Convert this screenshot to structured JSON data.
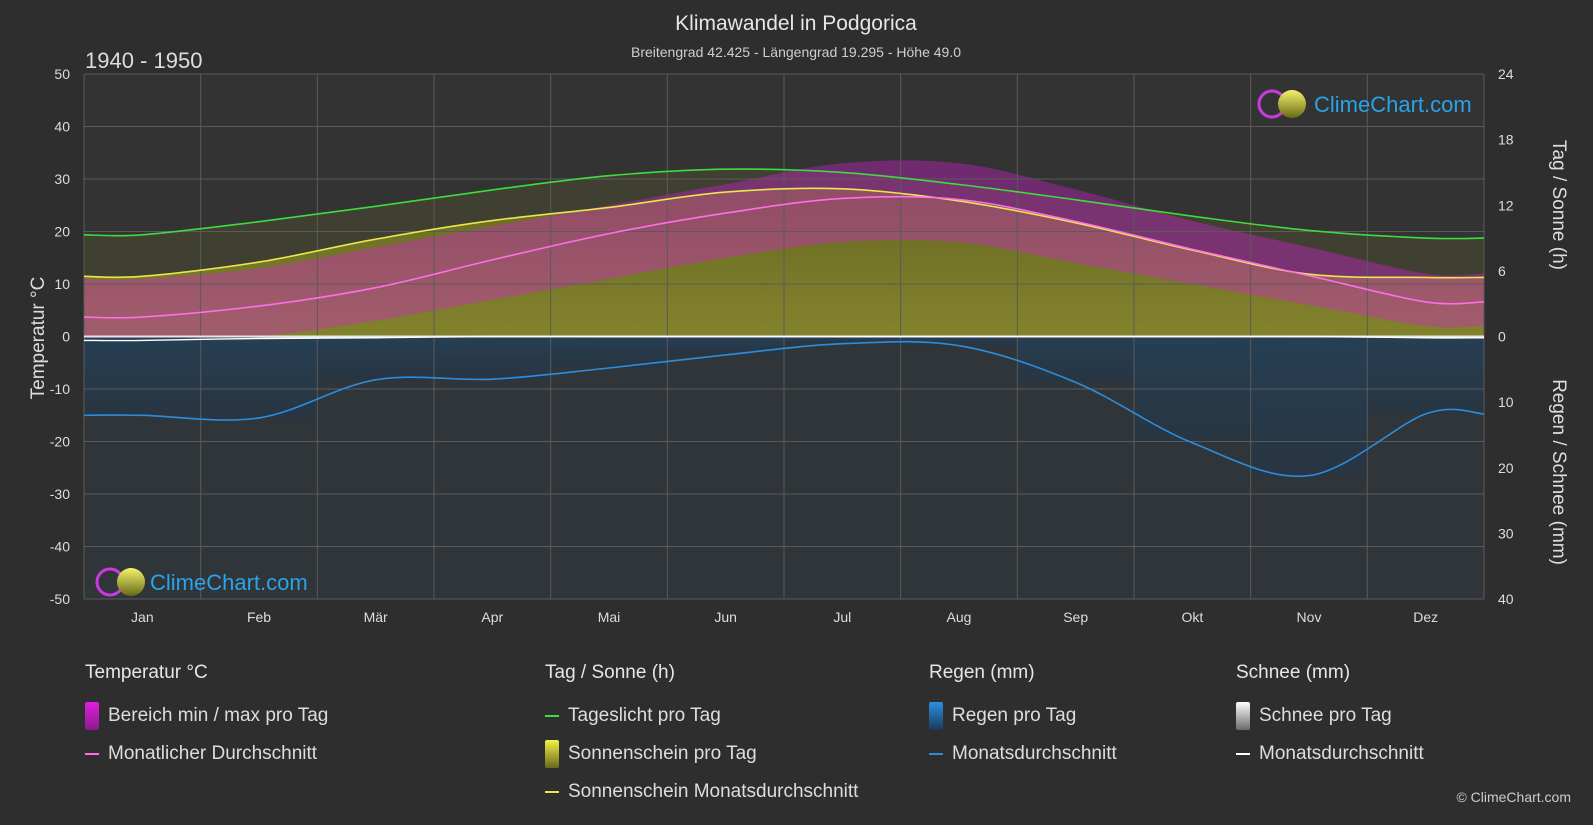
{
  "chart_data": {
    "type": "area",
    "title": "Klimawandel in Podgorica",
    "subtitle": "Breitengrad 42.425 - Längengrad 19.295 - Höhe 49.0",
    "period": "1940 - 1950",
    "categories": [
      "Jan",
      "Feb",
      "Mär",
      "Apr",
      "Mai",
      "Jun",
      "Jul",
      "Aug",
      "Sep",
      "Okt",
      "Nov",
      "Dez"
    ],
    "y_left": {
      "label": "Temperatur °C",
      "range": [
        -50,
        50
      ],
      "ticks": [
        50,
        40,
        30,
        20,
        10,
        0,
        -10,
        -20,
        -30,
        -40,
        -50
      ]
    },
    "y_right_top": {
      "label": "Tag / Sonne (h)",
      "range": [
        0,
        24
      ],
      "ticks": [
        24,
        18,
        12,
        6,
        0
      ]
    },
    "y_right_bottom": {
      "label": "Regen / Schnee (mm)",
      "range": [
        0,
        40
      ],
      "ticks": [
        0,
        10,
        20,
        30,
        40
      ]
    },
    "series": [
      {
        "name": "Tageslicht pro Tag",
        "unit": "h",
        "color": "#3ddc3d",
        "values": [
          9.3,
          10.5,
          11.9,
          13.4,
          14.7,
          15.3,
          15.0,
          13.9,
          12.5,
          11.0,
          9.7,
          9.0
        ]
      },
      {
        "name": "Sonnenschein Monatsdurchschnitt",
        "unit": "h",
        "color": "#e8e84a",
        "values": [
          5.5,
          6.8,
          8.9,
          10.6,
          11.8,
          13.2,
          13.5,
          12.4,
          10.4,
          7.9,
          5.7,
          5.4
        ]
      },
      {
        "name": "Monatlicher Durchschnitt",
        "unit": "°C",
        "color": "#ff6ee6",
        "values": [
          3.7,
          5.8,
          9.3,
          14.6,
          19.6,
          23.5,
          26.3,
          26.1,
          21.9,
          16.6,
          11.6,
          6.6
        ]
      },
      {
        "name": "Bereich min / max pro Tag",
        "unit": "°C",
        "color": "#d61fd6",
        "min": [
          -1,
          0,
          3,
          7,
          11,
          15,
          18,
          18,
          14,
          10,
          6,
          2
        ],
        "max": [
          11,
          13,
          17,
          21,
          25,
          29,
          33,
          33,
          28,
          22,
          17,
          12
        ]
      },
      {
        "name": "Regen Monatsdurchschnitt",
        "unit": "mm",
        "color": "#2a8ee0",
        "values": [
          12.0,
          12.4,
          6.6,
          6.5,
          4.8,
          2.8,
          1.1,
          1.4,
          7.0,
          16.2,
          21.2,
          11.8
        ]
      },
      {
        "name": "Schnee Monatsdurchschnitt",
        "unit": "mm",
        "color": "#ffffff",
        "values": [
          0.6,
          0.3,
          0.2,
          0,
          0,
          0,
          0,
          0,
          0,
          0,
          0,
          0.2
        ]
      }
    ],
    "grid": true,
    "colors": {
      "background": "#2e2e2e",
      "grid": "#555555",
      "sunshine_fill": "#8c8c2a",
      "rain_fill": "#1e4a6e"
    }
  },
  "legend": {
    "temp": {
      "title": "Temperatur °C",
      "items": [
        "Bereich min / max pro Tag",
        "Monatlicher Durchschnitt"
      ]
    },
    "sun": {
      "title": "Tag / Sonne (h)",
      "items": [
        "Tageslicht pro Tag",
        "Sonnenschein pro Tag",
        "Sonnenschein Monatsdurchschnitt"
      ]
    },
    "rain": {
      "title": "Regen (mm)",
      "items": [
        "Regen pro Tag",
        "Monatsdurchschnitt"
      ]
    },
    "snow": {
      "title": "Schnee (mm)",
      "items": [
        "Schnee pro Tag",
        "Monatsdurchschnitt"
      ]
    }
  },
  "branding": {
    "logo_text": "ClimeChart.com",
    "copyright": "© ClimeChart.com"
  }
}
